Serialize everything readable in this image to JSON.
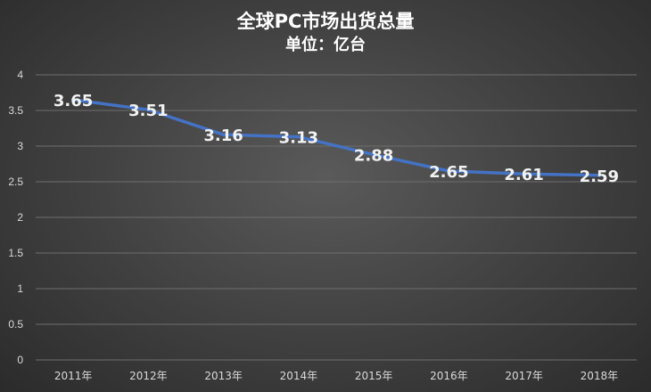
{
  "chart_data": {
    "type": "line",
    "title": "全球PC市场出货总量",
    "subtitle": "单位：亿台",
    "categories": [
      "2011年",
      "2012年",
      "2013年",
      "2014年",
      "2015年",
      "2016年",
      "2017年",
      "2018年"
    ],
    "series": [
      {
        "values": [
          3.65,
          3.51,
          3.16,
          3.13,
          2.88,
          2.65,
          2.61,
          2.59
        ]
      }
    ],
    "data_labels": [
      "3.65",
      "3.51",
      "3.16",
      "3.13",
      "2.88",
      "2.65",
      "2.61",
      "2.59"
    ],
    "ylim": [
      0,
      4
    ],
    "yticks": [
      0,
      0.5,
      1,
      1.5,
      2,
      2.5,
      3,
      3.5,
      4
    ],
    "ytick_labels": [
      "0",
      "0.5",
      "1",
      "1.5",
      "2",
      "2.5",
      "3",
      "3.5",
      "4"
    ],
    "xlabel": "",
    "ylabel": "",
    "grid": true,
    "legend": "none",
    "colors": {
      "line": "#4472c4",
      "grid": "#6e6e6e",
      "text": "#ffffff"
    }
  }
}
